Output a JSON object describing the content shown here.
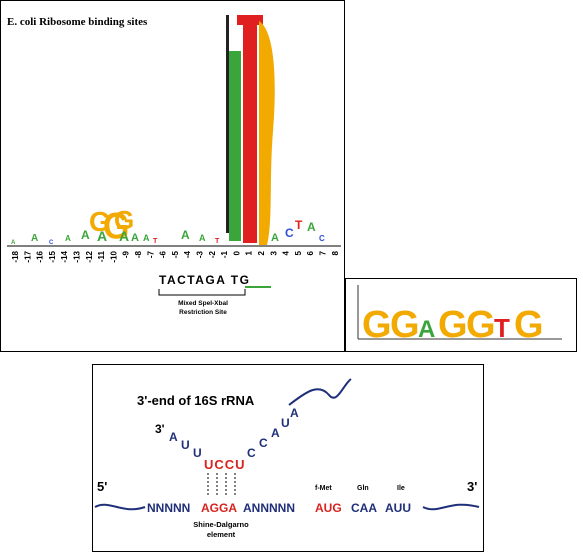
{
  "logo_panel": {
    "title": "E. coli Ribosome binding sites",
    "positions": [
      "-18",
      "-17",
      "-16",
      "-15",
      "-14",
      "-13",
      "-12",
      "-11",
      "-10",
      "-9",
      "-8",
      "-7",
      "-6",
      "-5",
      "-4",
      "-3",
      "-2",
      "-1",
      "0",
      "1",
      "2",
      "3",
      "4",
      "5",
      "6",
      "7",
      "8"
    ],
    "site_sequence": "TACTAGA TG",
    "bracket_label_line1": "Mixed SpeI-XbaI",
    "bracket_label_line2": "Restriction Site"
  },
  "consensus_panel": {
    "letters": [
      "G",
      "G",
      "A",
      "G",
      "G",
      "T",
      "G"
    ],
    "colors": {
      "A": "#3aa53a",
      "C": "#2f4fd8",
      "G": "#f2a900",
      "T": "#e02020"
    }
  },
  "sd_panel": {
    "rrna_label": "3'-end of 16S rRNA",
    "rrna_3prime": "3'",
    "rrna_bases_left": [
      "A",
      "U",
      "U"
    ],
    "rrna_ucc": "UCCU",
    "rrna_bases_right": [
      "C",
      "C",
      "A",
      "U",
      "A"
    ],
    "mrna_5prime": "5'",
    "mrna_3prime": "3'",
    "mrna_n_left": "NNNNN",
    "mrna_sd": "AGGA",
    "mrna_n_right": "ANNNNN",
    "mrna_aug": "AUG",
    "mrna_caa": "CAA",
    "mrna_auu": "AUU",
    "aa_fmet": "f-Met",
    "aa_gln": "Gln",
    "aa_ile": "Ile",
    "sd_label_line1": "Shine-Dalgarno",
    "sd_label_line2": "element"
  }
}
